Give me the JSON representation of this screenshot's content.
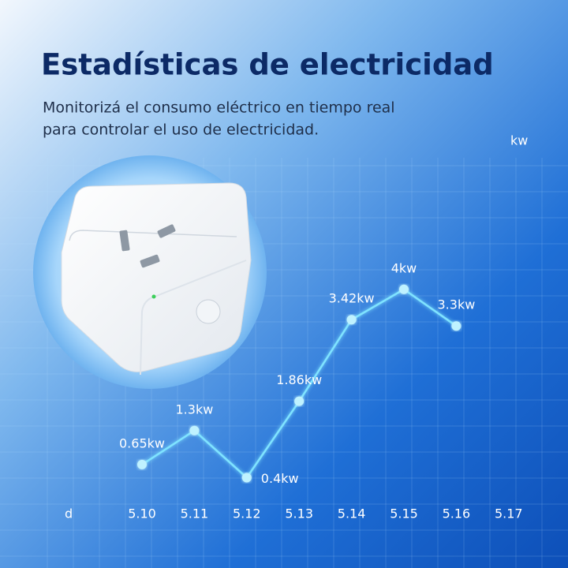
{
  "chart_data": {
    "type": "line",
    "title": "Estadísticas de electricidad",
    "subtitle": [
      "Monitorizá el consumo eléctrico en tiempo real",
      "para controlar el uso de electricidad."
    ],
    "x_label": "d",
    "y_label": "kw",
    "categories": [
      "5.10",
      "5.11",
      "5.12",
      "5.13",
      "5.14",
      "5.15",
      "5.16",
      "5.17"
    ],
    "values": [
      0.65,
      1.3,
      0.4,
      1.86,
      3.42,
      4,
      3.3,
      null
    ],
    "value_labels": [
      "0.65kw",
      "1.3kw",
      "0.4kw",
      "1.86kw",
      "3.42kw",
      "4kw",
      "3.3kw",
      null
    ],
    "ylim": [
      0,
      4.6
    ],
    "color": "#7fe3ff"
  }
}
